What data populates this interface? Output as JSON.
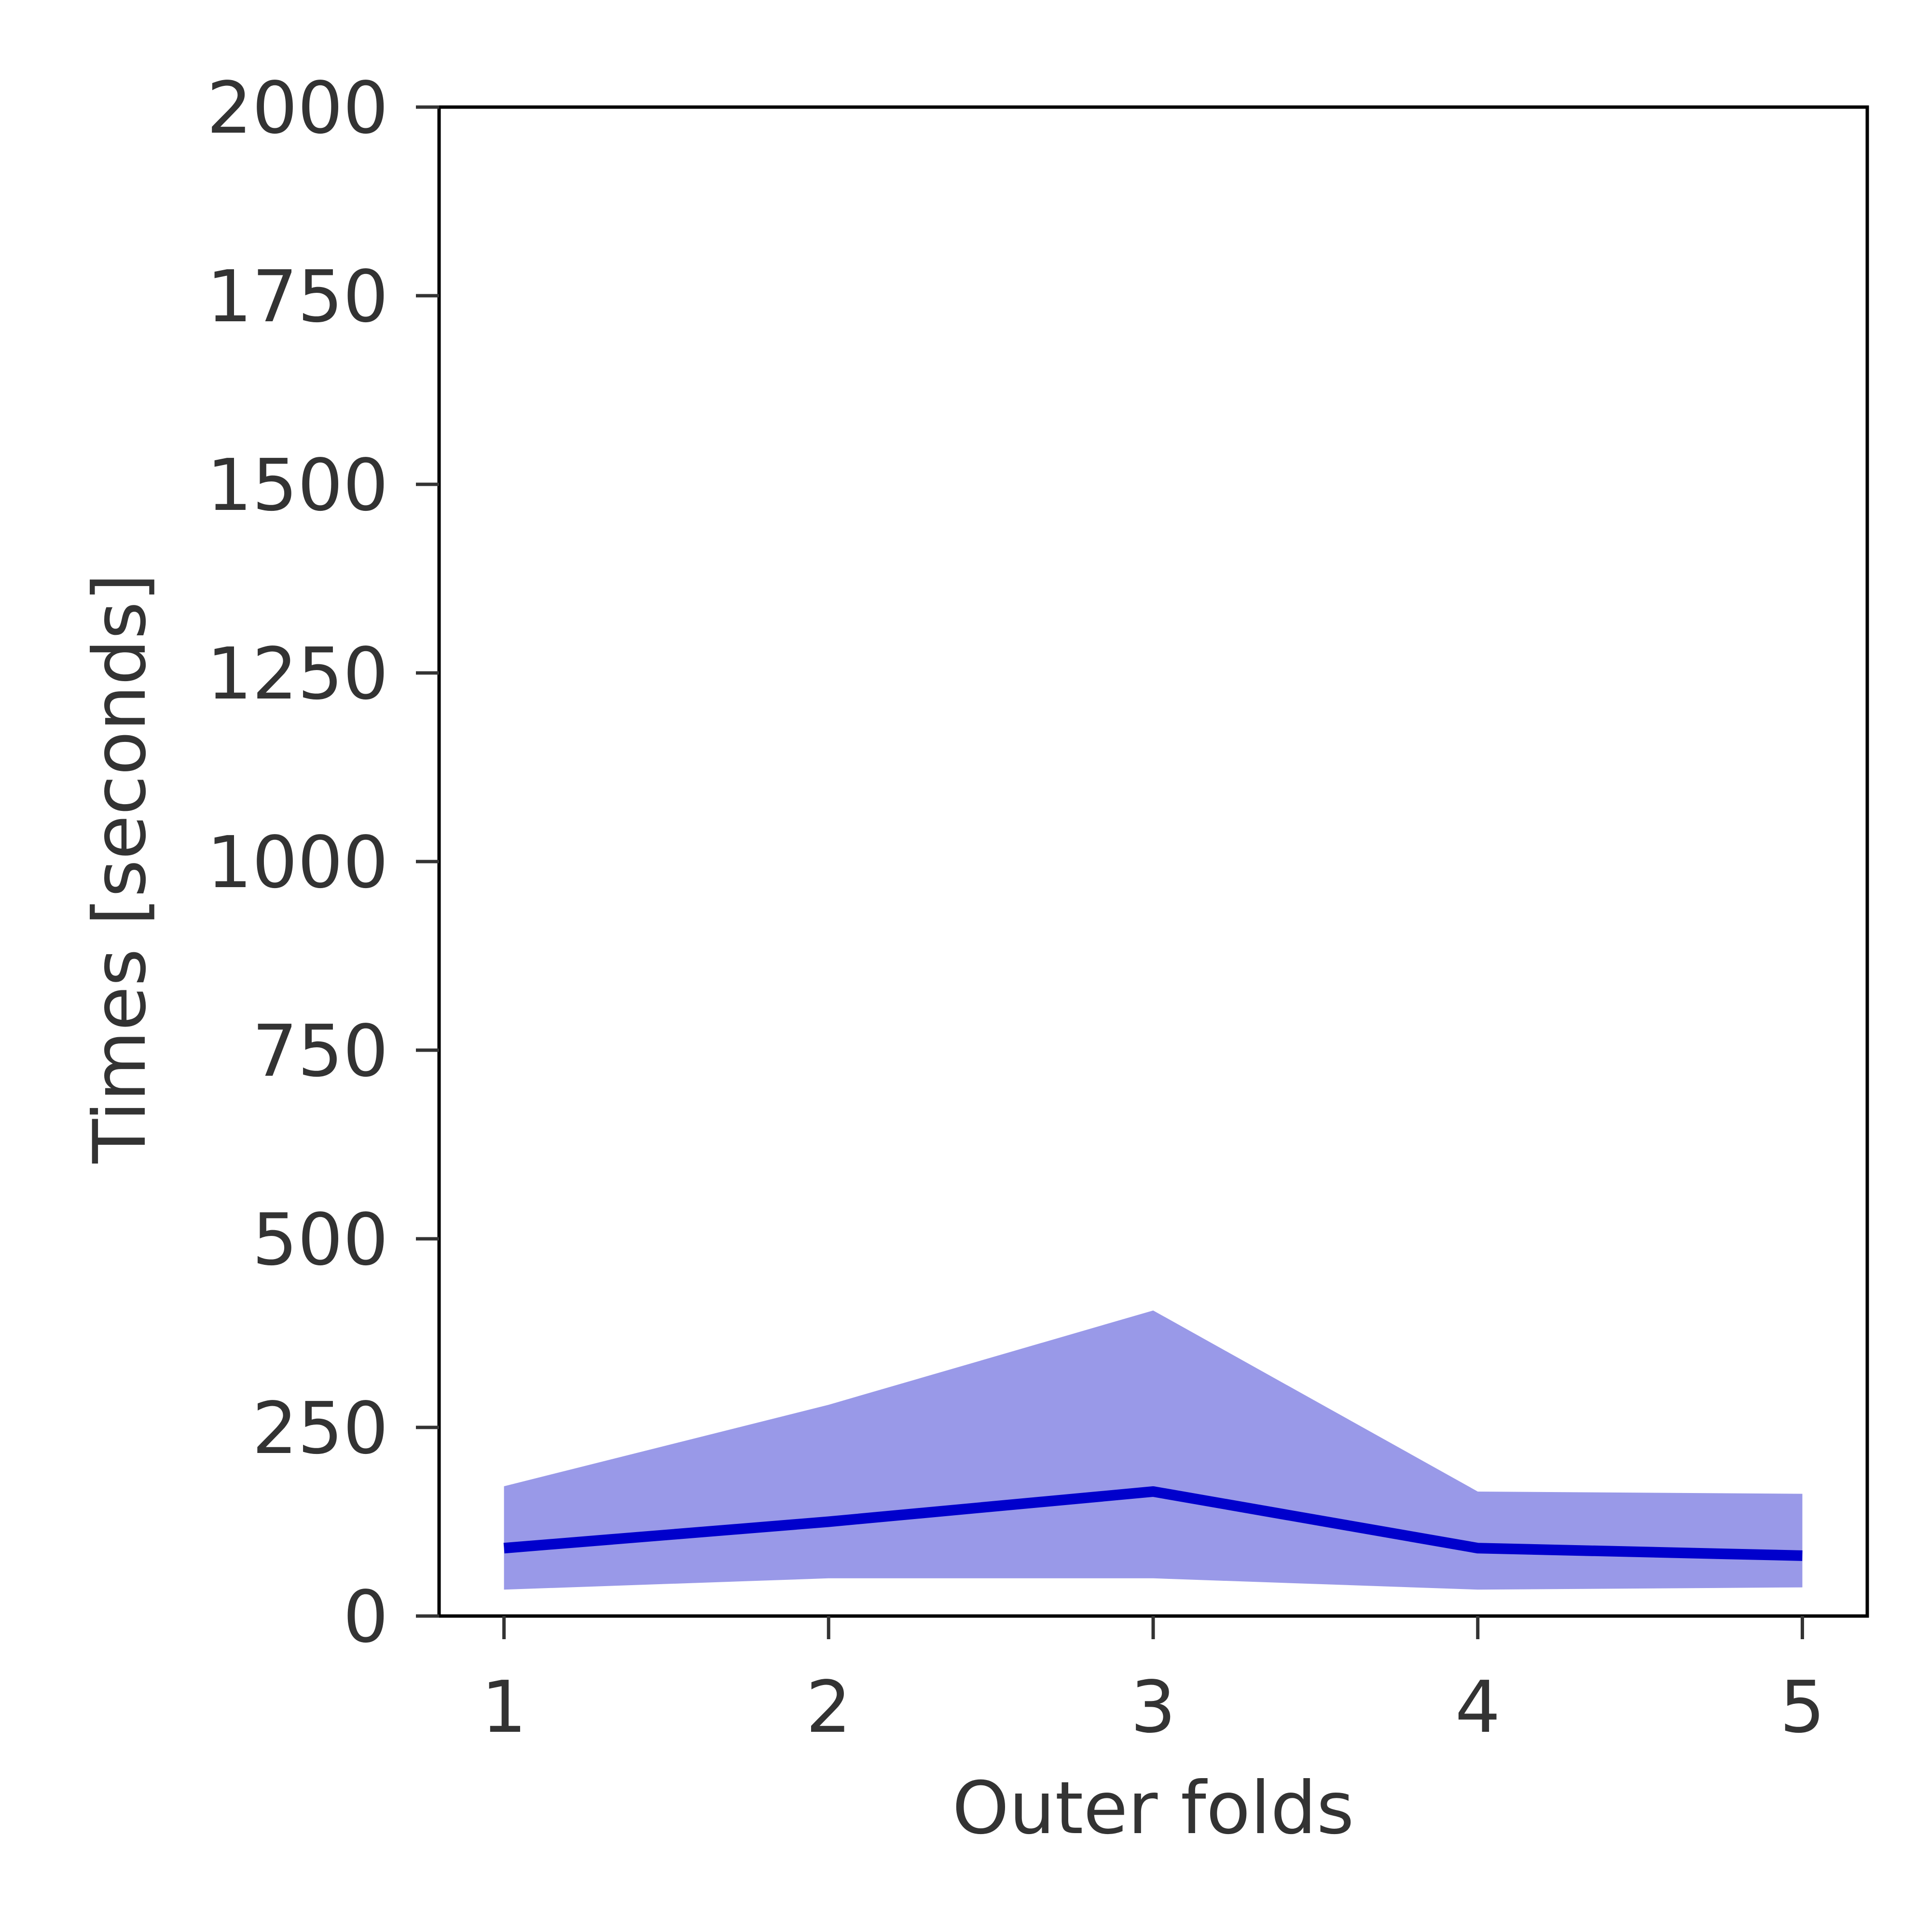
{
  "chart_data": {
    "type": "line",
    "xlabel": "Outer folds",
    "ylabel": "Times [seconds]",
    "x": [
      1,
      2,
      3,
      4,
      5
    ],
    "xticks": [
      "1",
      "2",
      "3",
      "4",
      "5"
    ],
    "xlim": [
      0.8,
      5.2
    ],
    "ylim": [
      0,
      2000
    ],
    "yticks": [
      "0",
      "250",
      "500",
      "750",
      "1000",
      "1250",
      "1500",
      "1750",
      "2000"
    ],
    "grid": false,
    "series": [
      {
        "values": [
          90,
          125,
          165,
          90,
          80
        ],
        "color": "#0000cc"
      }
    ],
    "band": {
      "lower": [
        35,
        50,
        50,
        35,
        38
      ],
      "upper": [
        172,
        280,
        405,
        165,
        162
      ],
      "color": "#9999e8"
    }
  }
}
